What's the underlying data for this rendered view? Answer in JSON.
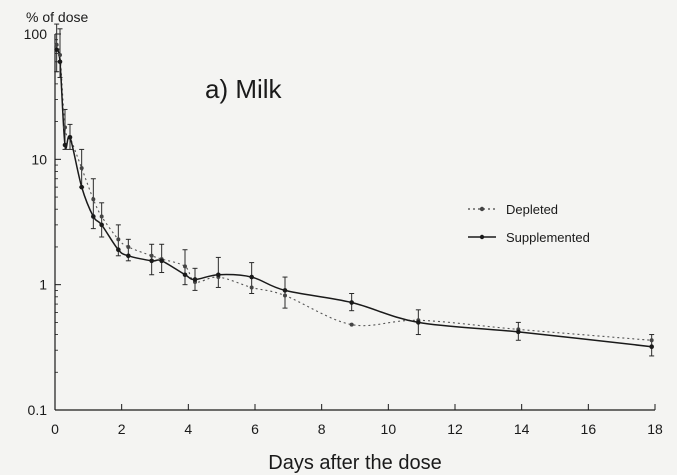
{
  "chart_data": {
    "type": "line",
    "title": "a) Milk",
    "xlabel": "Days after the dose",
    "ylabel": "% of dose",
    "xlim": [
      0,
      18
    ],
    "ylim": [
      0.1,
      100
    ],
    "yscale": "log",
    "x_ticks": [
      "0",
      "2",
      "4",
      "6",
      "8",
      "10",
      "12",
      "14",
      "16",
      "18"
    ],
    "y_ticks": [
      "0.1",
      "1",
      "10",
      "100"
    ],
    "grid": false,
    "legend_position": "right",
    "series": [
      {
        "name": "Depleted",
        "style": "dotted",
        "x": [
          0.05,
          0.15,
          0.3,
          0.45,
          0.8,
          1.15,
          1.4,
          1.9,
          2.2,
          2.9,
          3.2,
          3.9,
          4.2,
          4.9,
          5.9,
          6.9,
          8.9,
          10.9,
          13.9,
          17.9
        ],
        "y": [
          82,
          68,
          18,
          15,
          8.5,
          4.8,
          3.5,
          2.3,
          2.0,
          1.7,
          1.6,
          1.4,
          1.05,
          1.15,
          0.95,
          0.82,
          0.48,
          0.52,
          0.44,
          0.36
        ]
      },
      {
        "name": "Supplemented",
        "style": "solid",
        "x": [
          0.05,
          0.15,
          0.3,
          0.45,
          0.8,
          1.15,
          1.4,
          1.9,
          2.2,
          2.9,
          3.2,
          3.9,
          4.2,
          4.9,
          5.9,
          6.9,
          8.9,
          10.9,
          13.9,
          17.9
        ],
        "y": [
          75,
          60,
          13,
          15,
          6.0,
          3.5,
          3.0,
          1.9,
          1.7,
          1.55,
          1.55,
          1.2,
          1.1,
          1.2,
          1.15,
          0.9,
          0.72,
          0.5,
          0.42,
          0.32
        ]
      }
    ],
    "error_bars": {
      "x": [
        0.05,
        0.15,
        0.3,
        0.45,
        0.8,
        1.15,
        1.4,
        1.9,
        2.2,
        2.9,
        3.2,
        3.9,
        4.2,
        4.9,
        5.9,
        6.9,
        8.9,
        10.9,
        13.9,
        17.9
      ],
      "low": [
        50,
        45,
        12,
        12,
        6,
        2.8,
        2.4,
        1.7,
        1.55,
        1.2,
        1.25,
        1.0,
        0.9,
        0.95,
        0.85,
        0.65,
        0.62,
        0.4,
        0.36,
        0.27
      ],
      "high": [
        120,
        110,
        25,
        19,
        12,
        7,
        4.5,
        3.0,
        2.3,
        2.1,
        2.1,
        1.9,
        1.35,
        1.65,
        1.5,
        1.15,
        0.85,
        0.63,
        0.5,
        0.4
      ]
    }
  }
}
